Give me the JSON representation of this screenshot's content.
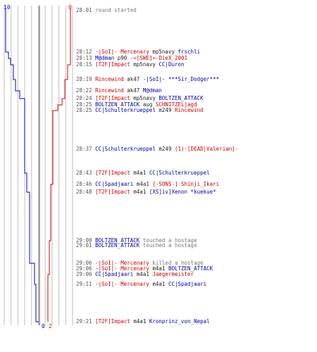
{
  "colors": {
    "blue": "#0000cc",
    "red": "#dd0000",
    "grid": "#bdbdbd",
    "center": "#444444",
    "time": "#555555"
  },
  "scores": {
    "blue_start": "10",
    "red_start": "0",
    "blue_end": "0",
    "red_end": "2"
  },
  "events": [
    {
      "time": "28:01",
      "parts": [
        {
          "text": "round started",
          "c": "g"
        }
      ]
    },
    {
      "time": "28:12",
      "parts": [
        {
          "text": "-|SoI|- Mercenary",
          "c": "r"
        },
        {
          "text": " mp5navy ",
          "c": "k"
        },
        {
          "text": "frschli",
          "c": "b"
        }
      ]
    },
    {
      "time": "28:13",
      "parts": [
        {
          "text": "M@dman",
          "c": "b"
        },
        {
          "text": " p90 ",
          "c": "k"
        },
        {
          "text": "-=[SWE]=-DieX_2001",
          "c": "r"
        }
      ]
    },
    {
      "time": "28:15",
      "parts": [
        {
          "text": "[T2F]Impact",
          "c": "r"
        },
        {
          "text": " mp5navy ",
          "c": "k"
        },
        {
          "text": "CC|Duron",
          "c": "b"
        }
      ]
    },
    {
      "time": "28:19",
      "parts": [
        {
          "text": "Rincewind",
          "c": "r"
        },
        {
          "text": " ak47 ",
          "c": "k"
        },
        {
          "text": "-|SoI|- ***Sir_Dodger***",
          "c": "b"
        }
      ]
    },
    {
      "time": "28:22",
      "parts": [
        {
          "text": "Rincewind",
          "c": "r"
        },
        {
          "text": " ak47 ",
          "c": "k"
        },
        {
          "text": "M@dman",
          "c": "b"
        }
      ]
    },
    {
      "time": "28:24",
      "parts": [
        {
          "text": "[T2F]Impact",
          "c": "r"
        },
        {
          "text": " mp5navy ",
          "c": "k"
        },
        {
          "text": "BOLTZEN_ATTACK",
          "c": "b"
        }
      ]
    },
    {
      "time": "28:25",
      "parts": [
        {
          "text": "BOLTZEN_ATTACK",
          "c": "b"
        },
        {
          "text": " aug ",
          "c": "k"
        },
        {
          "text": "SCHNITZELjagd",
          "c": "r"
        }
      ]
    },
    {
      "time": "28:25",
      "parts": [
        {
          "text": "CC|Schulterkrueppel",
          "c": "b"
        },
        {
          "text": " m249 ",
          "c": "k"
        },
        {
          "text": "Rincewind",
          "c": "r"
        }
      ]
    },
    {
      "time": "28:37",
      "parts": [
        {
          "text": "CC|Schulterkrueppel",
          "c": "b"
        },
        {
          "text": " m249 ",
          "c": "k"
        },
        {
          "text": "(1)-[DEAD|Valerian]-",
          "c": "r"
        }
      ]
    },
    {
      "time": "28:43",
      "parts": [
        {
          "text": "[T2F]Impact",
          "c": "r"
        },
        {
          "text": " m4a1 ",
          "c": "k"
        },
        {
          "text": "CC|Schulterkrueppel",
          "c": "b"
        }
      ]
    },
    {
      "time": "28:46",
      "parts": [
        {
          "text": "CC|Spadjaari",
          "c": "b"
        },
        {
          "text": " m4a1 ",
          "c": "k"
        },
        {
          "text": "[-SONS-] Shinji_Ikari",
          "c": "r"
        }
      ]
    },
    {
      "time": "28:48",
      "parts": [
        {
          "text": "[T2F]Impact",
          "c": "r"
        },
        {
          "text": " m4a1 ",
          "c": "k"
        },
        {
          "text": "[XS]iv]Xenon *kuekue*",
          "c": "b"
        }
      ]
    },
    {
      "time": "29:00",
      "parts": [
        {
          "text": "BOLTZEN_ATTACK",
          "c": "b"
        },
        {
          "text": " touched a hostage",
          "c": "g"
        }
      ]
    },
    {
      "time": "29:01",
      "parts": [
        {
          "text": "BOLTZEN_ATTACK",
          "c": "b"
        },
        {
          "text": " touched a hostage",
          "c": "g"
        }
      ]
    },
    {
      "time": "29:06",
      "parts": [
        {
          "text": "-|SoI|- Mercenary",
          "c": "r"
        },
        {
          "text": " killed a hostage",
          "c": "g"
        }
      ]
    },
    {
      "time": "29:06",
      "parts": [
        {
          "text": "-|SoI|- Mercenary",
          "c": "r"
        },
        {
          "text": " m4a1 ",
          "c": "k"
        },
        {
          "text": "BOLTZEN_ATTACK",
          "c": "b"
        }
      ]
    },
    {
      "time": "29:06",
      "parts": [
        {
          "text": "CC|Spadjaari",
          "c": "b"
        },
        {
          "text": " m4a1 ",
          "c": "k"
        },
        {
          "text": "Jaegermeister",
          "c": "r"
        }
      ]
    },
    {
      "time": "29:11",
      "parts": [
        {
          "text": "-|SoI|- Mercenary",
          "c": "r"
        },
        {
          "text": " m4a1 ",
          "c": "k"
        },
        {
          "text": "CC|Spadjaari",
          "c": "b"
        }
      ]
    },
    {
      "time": "29:21",
      "parts": [
        {
          "text": "[T2F]Impact",
          "c": "r"
        },
        {
          "text": " m4a1 ",
          "c": "k"
        },
        {
          "text": "Kronprinz_von_Nepal",
          "c": "b"
        }
      ]
    }
  ]
}
